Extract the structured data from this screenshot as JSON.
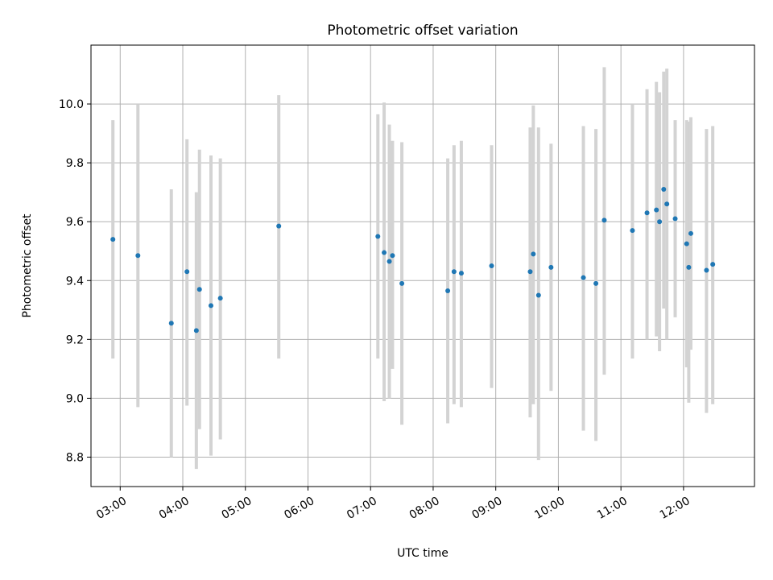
{
  "chart_data": {
    "type": "scatter",
    "title": "Photometric offset variation",
    "xlabel": "UTC time",
    "ylabel": "Photometric offset",
    "x_ticks": [
      "03:00",
      "04:00",
      "05:00",
      "06:00",
      "07:00",
      "08:00",
      "09:00",
      "10:00",
      "11:00",
      "12:00"
    ],
    "y_ticks": [
      "8.8",
      "9.0",
      "9.2",
      "9.4",
      "9.6",
      "9.8",
      "10.0"
    ],
    "xlim": [
      "02:32",
      "13:08"
    ],
    "ylim": [
      8.7,
      10.2
    ],
    "grid": true,
    "marker_color": "#1f77b4",
    "errorbar_color": "#d3d3d3",
    "points": [
      {
        "x": "02:53",
        "y": 9.54,
        "ylow": 9.135,
        "yhigh": 9.945
      },
      {
        "x": "03:17",
        "y": 9.485,
        "ylow": 8.97,
        "yhigh": 10.0
      },
      {
        "x": "03:49",
        "y": 9.255,
        "ylow": 8.8,
        "yhigh": 9.71
      },
      {
        "x": "04:04",
        "y": 9.43,
        "ylow": 8.975,
        "yhigh": 9.88
      },
      {
        "x": "04:13",
        "y": 9.23,
        "ylow": 8.76,
        "yhigh": 9.7
      },
      {
        "x": "04:16",
        "y": 9.37,
        "ylow": 8.895,
        "yhigh": 9.845
      },
      {
        "x": "04:27",
        "y": 9.315,
        "ylow": 8.805,
        "yhigh": 9.825
      },
      {
        "x": "04:36",
        "y": 9.34,
        "ylow": 8.86,
        "yhigh": 9.815
      },
      {
        "x": "05:32",
        "y": 9.585,
        "ylow": 9.135,
        "yhigh": 10.03
      },
      {
        "x": "07:07",
        "y": 9.55,
        "ylow": 9.135,
        "yhigh": 9.965
      },
      {
        "x": "07:13",
        "y": 9.495,
        "ylow": 8.99,
        "yhigh": 10.005
      },
      {
        "x": "07:18",
        "y": 9.465,
        "ylow": 9.0,
        "yhigh": 9.93
      },
      {
        "x": "07:21",
        "y": 9.485,
        "ylow": 9.1,
        "yhigh": 9.875
      },
      {
        "x": "07:30",
        "y": 9.39,
        "ylow": 8.91,
        "yhigh": 9.87
      },
      {
        "x": "08:14",
        "y": 9.365,
        "ylow": 8.915,
        "yhigh": 9.815
      },
      {
        "x": "08:20",
        "y": 9.43,
        "ylow": 8.98,
        "yhigh": 9.86
      },
      {
        "x": "08:27",
        "y": 9.425,
        "ylow": 8.97,
        "yhigh": 9.875
      },
      {
        "x": "08:56",
        "y": 9.45,
        "ylow": 9.035,
        "yhigh": 9.86
      },
      {
        "x": "09:33",
        "y": 9.43,
        "ylow": 8.935,
        "yhigh": 9.92
      },
      {
        "x": "09:36",
        "y": 9.49,
        "ylow": 8.98,
        "yhigh": 9.995
      },
      {
        "x": "09:41",
        "y": 9.35,
        "ylow": 8.79,
        "yhigh": 9.92
      },
      {
        "x": "09:53",
        "y": 9.445,
        "ylow": 9.025,
        "yhigh": 9.865
      },
      {
        "x": "10:24",
        "y": 9.41,
        "ylow": 8.89,
        "yhigh": 9.925
      },
      {
        "x": "10:36",
        "y": 9.39,
        "ylow": 8.855,
        "yhigh": 9.915
      },
      {
        "x": "10:44",
        "y": 9.605,
        "ylow": 9.08,
        "yhigh": 10.125
      },
      {
        "x": "11:11",
        "y": 9.57,
        "ylow": 9.135,
        "yhigh": 10.0
      },
      {
        "x": "11:25",
        "y": 9.63,
        "ylow": 9.2,
        "yhigh": 10.05
      },
      {
        "x": "11:34",
        "y": 9.64,
        "ylow": 9.21,
        "yhigh": 10.075
      },
      {
        "x": "11:37",
        "y": 9.6,
        "ylow": 9.16,
        "yhigh": 10.04
      },
      {
        "x": "11:41",
        "y": 9.71,
        "ylow": 9.305,
        "yhigh": 10.11
      },
      {
        "x": "11:44",
        "y": 9.66,
        "ylow": 9.2,
        "yhigh": 10.12
      },
      {
        "x": "11:52",
        "y": 9.61,
        "ylow": 9.275,
        "yhigh": 9.945
      },
      {
        "x": "12:03",
        "y": 9.525,
        "ylow": 9.105,
        "yhigh": 9.945
      },
      {
        "x": "12:05",
        "y": 9.445,
        "ylow": 8.985,
        "yhigh": 9.94
      },
      {
        "x": "12:07",
        "y": 9.56,
        "ylow": 9.165,
        "yhigh": 9.955
      },
      {
        "x": "12:22",
        "y": 9.435,
        "ylow": 8.95,
        "yhigh": 9.915
      },
      {
        "x": "12:28",
        "y": 9.455,
        "ylow": 8.98,
        "yhigh": 9.925
      }
    ]
  }
}
